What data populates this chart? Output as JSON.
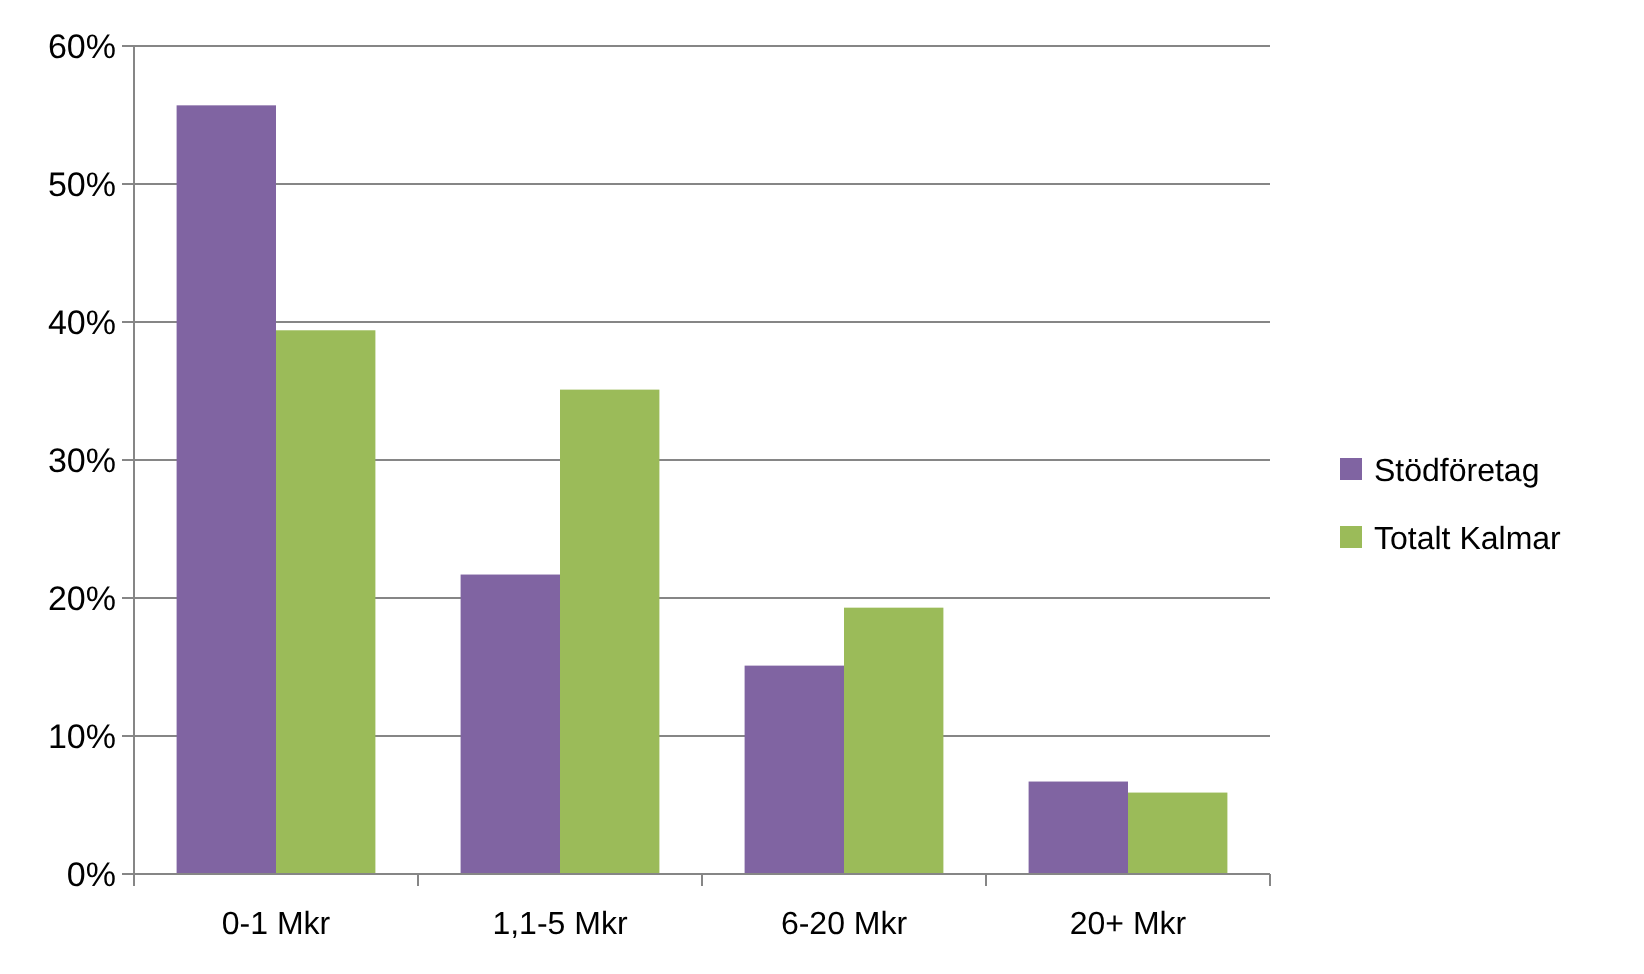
{
  "chart_data": {
    "type": "bar",
    "categories": [
      "0-1 Mkr",
      "1,1-5 Mkr",
      "6-20 Mkr",
      "20+ Mkr"
    ],
    "series": [
      {
        "name": "Stödföretag",
        "color": "#8064a2",
        "values": [
          55.7,
          21.7,
          15.1,
          6.7
        ]
      },
      {
        "name": "Totalt Kalmar",
        "color": "#9bbb59",
        "values": [
          39.4,
          35.1,
          19.3,
          5.9
        ]
      }
    ],
    "ylim": [
      0,
      60
    ],
    "yticks": [
      {
        "value": 0,
        "label": "0%"
      },
      {
        "value": 10,
        "label": "10%"
      },
      {
        "value": 20,
        "label": "20%"
      },
      {
        "value": 30,
        "label": "30%"
      },
      {
        "value": 40,
        "label": "40%"
      },
      {
        "value": 50,
        "label": "50%"
      },
      {
        "value": 60,
        "label": "60%"
      }
    ],
    "grid": "y",
    "legend": "right"
  }
}
